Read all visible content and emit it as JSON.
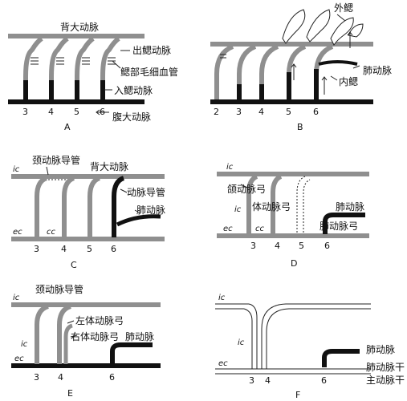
{
  "panels": {
    "A": {
      "caption": "A",
      "dorsal_aorta": "背大动脉",
      "efferent_branchial": "出鳃动脉",
      "gill_capillaries": "鳃部毛细血管",
      "afferent_branchial": "入鳃动脉",
      "ventral_aorta": "腹大动脉",
      "arch_numbers": [
        "3",
        "4",
        "5",
        "6"
      ]
    },
    "B": {
      "caption": "B",
      "external_gill": "外鳃",
      "pulmonary_artery": "肺动脉",
      "internal_gill": "内鳃",
      "arch_numbers": [
        "2",
        "3",
        "4",
        "5",
        "6"
      ]
    },
    "C": {
      "caption": "C",
      "carotid_duct": "颈动脉导管",
      "dorsal_aorta": "背大动脉",
      "ductus_arteriosus": "动脉导管",
      "pulmonary_artery": "肺动脉",
      "ic": "ic",
      "ec": "ec",
      "cc": "cc",
      "arch_numbers": [
        "3",
        "4",
        "5",
        "6"
      ]
    },
    "D": {
      "caption": "D",
      "carotid_arch": "颌动脉弓",
      "systemic_arch": "体动脉弓",
      "pulmonary_artery": "肺动脉",
      "pulmonary_arch": "肺动脉弓",
      "ic_top": "ic",
      "ic": "ic",
      "ec": "ec",
      "cc": "cc",
      "arch_numbers": [
        "3",
        "4",
        "5",
        "6"
      ]
    },
    "E": {
      "caption": "E",
      "carotid_duct": "颈动脉导管",
      "left_systemic_arch": "左体动脉弓",
      "right_systemic_arch": "右体动脉弓",
      "pulmonary_artery": "肺动脉",
      "ic_top": "ic",
      "ic": "ic",
      "ec": "ec",
      "arch_numbers": [
        "3",
        "4",
        "6"
      ]
    },
    "F": {
      "caption": "F",
      "pulmonary_artery": "肺动脉",
      "pulmonary_trunk": "肺动脉干",
      "aortic_trunk": "主动脉干",
      "ic_top": "ic",
      "ic": "ic",
      "ec": "ec",
      "arch_numbers": [
        "3",
        "4",
        "6"
      ]
    }
  }
}
